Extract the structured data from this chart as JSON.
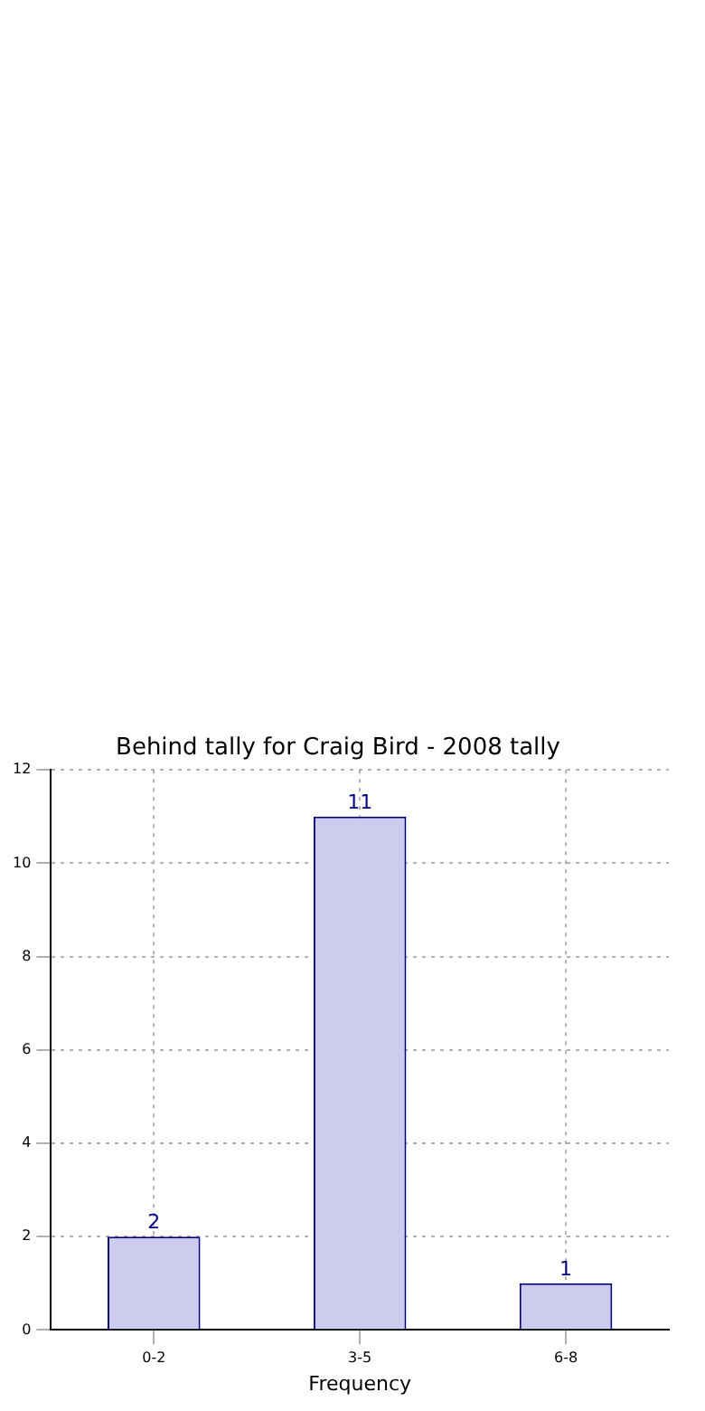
{
  "chart_data": {
    "type": "bar",
    "title": "Behind tally for Craig Bird - 2008 tally",
    "xlabel": "Frequency",
    "categories": [
      "0-2",
      "3-5",
      "6-8"
    ],
    "values": [
      2,
      11,
      1
    ],
    "color": "#ccccee",
    "ylim": [
      0,
      12
    ],
    "yticks": [
      0,
      2,
      4,
      6,
      8,
      10,
      12
    ],
    "grid": true,
    "data_labels": true
  }
}
